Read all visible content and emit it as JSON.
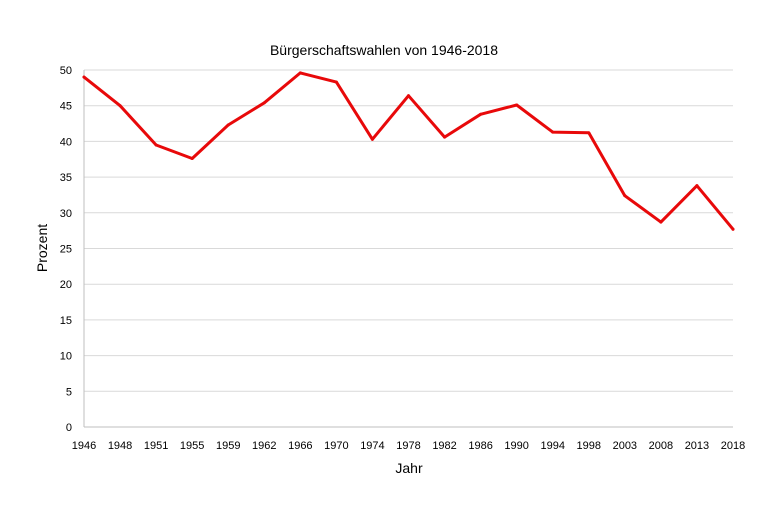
{
  "chart_data": {
    "type": "line",
    "title": "Bürgerschaftswahlen von 1946-2018",
    "xlabel": "Jahr",
    "ylabel": "Prozent",
    "categories": [
      "1946",
      "1948",
      "1951",
      "1955",
      "1959",
      "1962",
      "1966",
      "1970",
      "1974",
      "1978",
      "1982",
      "1986",
      "1990",
      "1994",
      "1998",
      "2003",
      "2008",
      "2013",
      "2018"
    ],
    "series": [
      {
        "values": [
          49.0,
          45.0,
          39.5,
          37.6,
          42.3,
          45.4,
          49.6,
          48.3,
          40.3,
          46.4,
          40.6,
          43.8,
          45.1,
          41.3,
          41.2,
          32.4,
          28.7,
          33.8,
          27.7
        ],
        "color": "#e8090a"
      }
    ],
    "ylim": [
      0,
      50
    ],
    "yticks": [
      0,
      5,
      10,
      15,
      20,
      25,
      30,
      35,
      40,
      45,
      50
    ],
    "grid": true,
    "legend": "none"
  }
}
